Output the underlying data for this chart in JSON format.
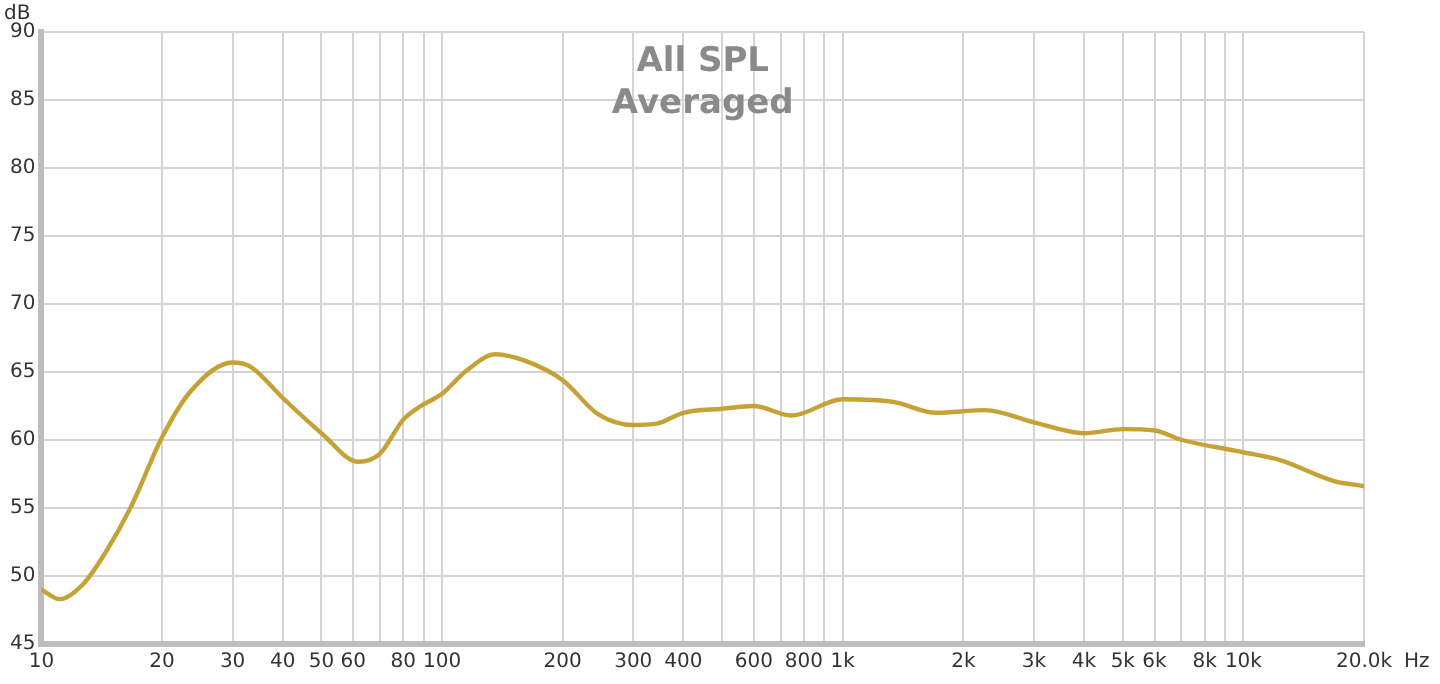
{
  "chart_data": {
    "type": "line",
    "title": "All SPL",
    "subtitle": "Averaged",
    "xlabel": "Hz",
    "ylabel": "dB",
    "log": "x",
    "grid": true,
    "legend": false,
    "marker": "none",
    "line_style": "solid",
    "xlim": [
      10,
      20000
    ],
    "ylim": [
      45,
      90
    ],
    "xticks": [
      10,
      20,
      30,
      40,
      50,
      60,
      {
        "value": 70,
        "label": null
      },
      80,
      {
        "value": 90,
        "label": null
      },
      100,
      200,
      300,
      400,
      {
        "value": 500,
        "label": null
      },
      600,
      {
        "value": 700,
        "label": null
      },
      800,
      {
        "value": 900,
        "label": null
      },
      {
        "value": 1000,
        "label": "1k"
      },
      {
        "value": 2000,
        "label": "2k"
      },
      {
        "value": 3000,
        "label": "3k"
      },
      {
        "value": 4000,
        "label": "4k"
      },
      {
        "value": 5000,
        "label": "5k"
      },
      {
        "value": 6000,
        "label": "6k"
      },
      {
        "value": 7000,
        "label": null
      },
      {
        "value": 8000,
        "label": "8k"
      },
      {
        "value": 9000,
        "label": null
      },
      {
        "value": 10000,
        "label": "10k"
      },
      {
        "value": 20000,
        "label": "20.0k"
      }
    ],
    "yticks": [
      45,
      50,
      55,
      60,
      65,
      70,
      75,
      80,
      85,
      90
    ],
    "series": [
      {
        "color": "#c4a235",
        "x": [
          10,
          11.1,
          12.7,
          14.5,
          16.8,
          20,
          23.6,
          30,
          33.2,
          40,
          50,
          61.8,
          70,
          80,
          88.5,
          100,
          115,
          136,
          162,
          200,
          245,
          300,
          343,
          400,
          500,
          600,
          745,
          1000,
          1336,
          1709,
          2267,
          3000,
          4000,
          5000,
          6000,
          7031,
          10000,
          12400,
          16750,
          20000
        ],
        "values": [
          49.0,
          48.3,
          49.4,
          51.8,
          55.2,
          60.2,
          63.6,
          65.7,
          65.4,
          63.1,
          60.5,
          58.4,
          59.0,
          61.5,
          62.5,
          63.4,
          65.1,
          66.3,
          65.8,
          64.4,
          61.9,
          61.1,
          61.2,
          62.0,
          62.3,
          62.5,
          61.8,
          63.0,
          62.8,
          62.0,
          62.2,
          61.3,
          60.5,
          60.8,
          60.7,
          60.0,
          59.1,
          58.5,
          57.0,
          56.6
        ]
      }
    ]
  }
}
